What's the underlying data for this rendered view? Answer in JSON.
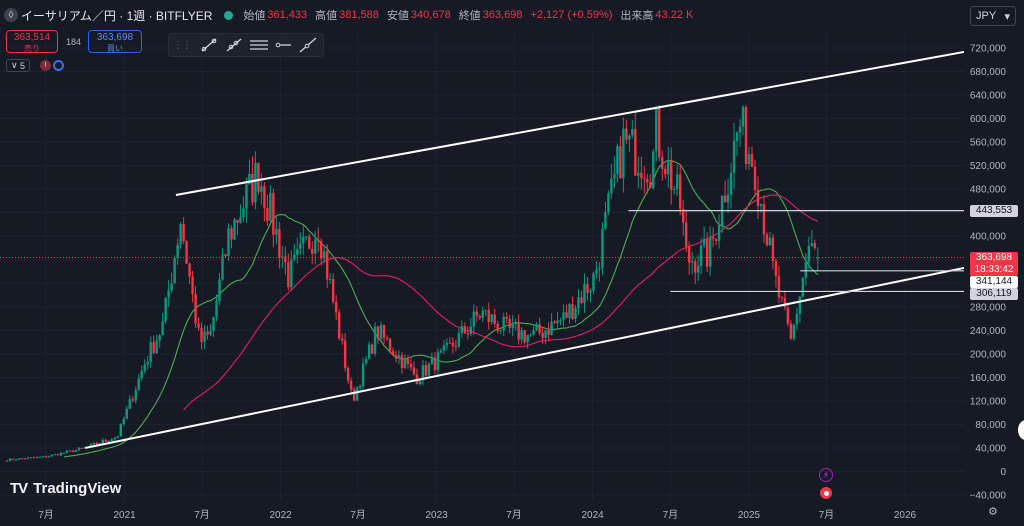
{
  "header": {
    "symbol_icon": "ethereum-icon",
    "symbol_glyph": "◊",
    "title": "イーサリアム／円 · 1週 · BITFLYER",
    "status_color": "#22ab94",
    "open_label": "始値",
    "open": "361,433",
    "high_label": "高値",
    "high": "381,588",
    "low_label": "安値",
    "low": "340,678",
    "close_label": "終値",
    "close": "363,698",
    "change": "+2,127 (+0.59%)",
    "volume_label": "出来高",
    "volume": "43.22 K"
  },
  "currency": {
    "value": "JPY",
    "icon": "chevron-down-icon"
  },
  "trade": {
    "sell_price": "363,514",
    "sell_label": "売り",
    "spread": "184",
    "buy_price": "363,698",
    "buy_label": "買い"
  },
  "toolbar": {
    "tools": [
      "trend-line-icon",
      "ray-icon",
      "parallel-channel-icon",
      "horizontal-ray-icon",
      "extended-line-icon"
    ]
  },
  "indicators": {
    "count": "5",
    "collapse_icon": "chevron-down-icon"
  },
  "logo": {
    "text": "TradingView",
    "mark": "TV"
  },
  "price_tags": {
    "resistance": "443,553",
    "current": "363,698",
    "countdown": "18:33:42",
    "support_1": "341,144",
    "support_2": "306,119"
  },
  "colors": {
    "up": "#089981",
    "down": "#f23645",
    "background": "#161a25",
    "ma_short": "#4caf50",
    "ma_long": "#e91e63"
  },
  "chart_data": {
    "type": "candlestick",
    "timeframe": "1W",
    "ylim": [
      -40000,
      720000
    ],
    "yticks": [
      -40000,
      0,
      40000,
      80000,
      120000,
      160000,
      200000,
      240000,
      280000,
      320000,
      360000,
      400000,
      440000,
      480000,
      520000,
      560000,
      600000,
      640000,
      680000,
      720000
    ],
    "ytick_labels": [
      "−40,000",
      "0",
      "40,000",
      "80,000",
      "120,000",
      "160,000",
      "200,000",
      "240,000",
      "280,000",
      "320,000",
      "360,000",
      "400,000",
      "440,000",
      "480,000",
      "520,000",
      "560,000",
      "600,000",
      "640,000",
      "680,000",
      "720,000"
    ],
    "x_ticks": [
      "7月",
      "2021",
      "7月",
      "2022",
      "7月",
      "2023",
      "7月",
      "2024",
      "7月",
      "2025",
      "7月",
      "2026"
    ],
    "x_tick_dates": [
      "2020-07-01",
      "2021-01-01",
      "2021-07-01",
      "2022-01-01",
      "2022-07-01",
      "2023-01-01",
      "2023-07-01",
      "2024-01-01",
      "2024-07-01",
      "2025-01-01",
      "2025-07-01",
      "2026-01-01"
    ],
    "anchors": [
      [
        "2020-04-01",
        20000
      ],
      [
        "2020-07-01",
        25000
      ],
      [
        "2020-10-01",
        40000
      ],
      [
        "2020-12-15",
        60000
      ],
      [
        "2021-01-15",
        120000
      ],
      [
        "2021-02-20",
        190000
      ],
      [
        "2021-04-01",
        250000
      ],
      [
        "2021-05-12",
        430000
      ],
      [
        "2021-06-25",
        220000
      ],
      [
        "2021-07-20",
        230000
      ],
      [
        "2021-09-01",
        400000
      ],
      [
        "2021-11-10",
        510000
      ],
      [
        "2022-01-20",
        330000
      ],
      [
        "2022-03-30",
        420000
      ],
      [
        "2022-06-18",
        120000
      ],
      [
        "2022-08-14",
        240000
      ],
      [
        "2022-11-15",
        160000
      ],
      [
        "2023-01-20",
        200000
      ],
      [
        "2023-04-15",
        270000
      ],
      [
        "2023-06-15",
        240000
      ],
      [
        "2023-08-15",
        230000
      ],
      [
        "2023-10-25",
        260000
      ],
      [
        "2024-01-05",
        330000
      ],
      [
        "2024-03-12",
        560000
      ],
      [
        "2024-05-20",
        520000
      ],
      [
        "2024-05-28",
        580000
      ],
      [
        "2024-07-25",
        450000
      ],
      [
        "2024-08-08",
        360000
      ],
      [
        "2024-10-01",
        370000
      ],
      [
        "2024-12-10",
        590000
      ],
      [
        "2025-01-15",
        520000
      ],
      [
        "2025-03-01",
        330000
      ],
      [
        "2025-04-09",
        220000
      ],
      [
        "2025-05-20",
        380000
      ],
      [
        "2025-06-15",
        363698
      ]
    ],
    "last_bar": {
      "open": 361433,
      "high": 381588,
      "low": 340678,
      "close": 363698
    },
    "trend_lines": [
      {
        "name": "channel-upper",
        "from": [
          "2021-05-01",
          470000
        ],
        "to": [
          "2026-06-01",
          715000
        ]
      },
      {
        "name": "channel-lower",
        "from": [
          "2020-10-01",
          40000
        ],
        "to": [
          "2026-06-01",
          348000
        ]
      }
    ],
    "horizontal_lines": [
      {
        "name": "resistance",
        "value": 443553,
        "from": "2024-03-25"
      },
      {
        "name": "support-1",
        "value": 341144,
        "from": "2025-05-01"
      },
      {
        "name": "support-2",
        "value": 306119,
        "from": "2024-07-01"
      }
    ],
    "moving_averages": [
      {
        "name": "ma-short",
        "period": 20,
        "color": "#4caf50"
      },
      {
        "name": "ma-long",
        "period": 60,
        "color": "#e91e63"
      }
    ],
    "current_price": 363698
  }
}
